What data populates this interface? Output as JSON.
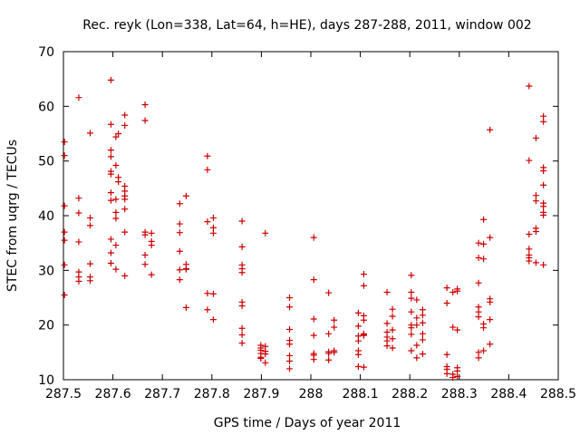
{
  "chart_data": {
    "type": "scatter",
    "title": "Rec. reyk (Lon=338, Lat=64, h=HE), days 287-288, 2011, window 002",
    "xlabel": "GPS time / Days of year 2011",
    "ylabel": "STEC from uqrg / TECUs",
    "xlim": [
      287.5,
      288.5
    ],
    "ylim": [
      10,
      70
    ],
    "xticks": [
      287.5,
      287.6,
      287.7,
      287.8,
      287.9,
      288.0,
      288.1,
      288.2,
      288.3,
      288.4,
      288.5
    ],
    "xtick_labels": [
      "287.5",
      "287.6",
      "287.7",
      "287.8",
      "287.9",
      "288",
      "288.1",
      "288.2",
      "288.3",
      "288.4",
      "288.5"
    ],
    "yticks": [
      10,
      20,
      30,
      40,
      50,
      60,
      70
    ],
    "ytick_labels": [
      "10",
      "20",
      "30",
      "40",
      "50",
      "60",
      "70"
    ],
    "grid": false,
    "legend": "none",
    "marker": "plus",
    "color": "#cc0000",
    "points": [
      [
        287.502,
        53.5
      ],
      [
        287.502,
        51.0
      ],
      [
        287.502,
        41.8
      ],
      [
        287.502,
        37.0
      ],
      [
        287.502,
        35.5
      ],
      [
        287.502,
        31.0
      ],
      [
        287.502,
        25.5
      ],
      [
        287.531,
        61.6
      ],
      [
        287.531,
        43.2
      ],
      [
        287.531,
        40.5
      ],
      [
        287.531,
        35.2
      ],
      [
        287.531,
        29.7
      ],
      [
        287.531,
        28.8
      ],
      [
        287.531,
        28.0
      ],
      [
        287.554,
        55.1
      ],
      [
        287.554,
        39.6
      ],
      [
        287.554,
        38.2
      ],
      [
        287.554,
        31.2
      ],
      [
        287.554,
        28.8
      ],
      [
        287.554,
        28.1
      ],
      [
        287.596,
        64.8
      ],
      [
        287.596,
        56.7
      ],
      [
        287.596,
        52.0
      ],
      [
        287.596,
        50.8
      ],
      [
        287.596,
        48.1
      ],
      [
        287.596,
        47.6
      ],
      [
        287.596,
        44.2
      ],
      [
        287.596,
        42.8
      ],
      [
        287.596,
        35.7
      ],
      [
        287.596,
        33.2
      ],
      [
        287.596,
        31.3
      ],
      [
        287.606,
        54.4
      ],
      [
        287.606,
        49.2
      ],
      [
        287.606,
        43.0
      ],
      [
        287.606,
        40.6
      ],
      [
        287.606,
        39.5
      ],
      [
        287.606,
        34.6
      ],
      [
        287.606,
        30.2
      ],
      [
        287.611,
        55.0
      ],
      [
        287.611,
        47.0
      ],
      [
        287.611,
        46.2
      ],
      [
        287.624,
        58.4
      ],
      [
        287.624,
        56.5
      ],
      [
        287.624,
        45.4
      ],
      [
        287.624,
        44.5
      ],
      [
        287.624,
        43.6
      ],
      [
        287.624,
        43.0
      ],
      [
        287.624,
        41.2
      ],
      [
        287.624,
        37.0
      ],
      [
        287.624,
        29.0
      ],
      [
        287.665,
        60.3
      ],
      [
        287.665,
        57.4
      ],
      [
        287.665,
        37.0
      ],
      [
        287.665,
        36.5
      ],
      [
        287.665,
        32.8
      ],
      [
        287.665,
        31.1
      ],
      [
        287.678,
        36.8
      ],
      [
        287.678,
        35.3
      ],
      [
        287.678,
        34.6
      ],
      [
        287.678,
        29.2
      ],
      [
        287.735,
        42.2
      ],
      [
        287.735,
        38.5
      ],
      [
        287.735,
        36.9
      ],
      [
        287.735,
        33.5
      ],
      [
        287.735,
        30.1
      ],
      [
        287.735,
        28.3
      ],
      [
        287.748,
        43.6
      ],
      [
        287.748,
        31.1
      ],
      [
        287.748,
        30.3
      ],
      [
        287.748,
        30.2
      ],
      [
        287.748,
        23.2
      ],
      [
        287.791,
        50.9
      ],
      [
        287.791,
        48.4
      ],
      [
        287.791,
        38.9
      ],
      [
        287.791,
        25.8
      ],
      [
        287.791,
        22.8
      ],
      [
        287.803,
        39.6
      ],
      [
        287.803,
        37.8
      ],
      [
        287.803,
        36.8
      ],
      [
        287.803,
        25.7
      ],
      [
        287.803,
        21.0
      ],
      [
        287.861,
        39.0
      ],
      [
        287.861,
        34.3
      ],
      [
        287.861,
        31.0
      ],
      [
        287.861,
        30.3
      ],
      [
        287.861,
        29.6
      ],
      [
        287.861,
        24.2
      ],
      [
        287.861,
        23.5
      ],
      [
        287.861,
        19.4
      ],
      [
        287.861,
        18.2
      ],
      [
        287.861,
        16.7
      ],
      [
        287.899,
        16.3
      ],
      [
        287.899,
        15.8
      ],
      [
        287.899,
        15.4
      ],
      [
        287.899,
        14.8
      ],
      [
        287.899,
        14.1
      ],
      [
        287.899,
        13.9
      ],
      [
        287.908,
        36.8
      ],
      [
        287.908,
        16.1
      ],
      [
        287.908,
        15.2
      ],
      [
        287.908,
        14.7
      ],
      [
        287.908,
        13.1
      ],
      [
        287.957,
        25.0
      ],
      [
        287.957,
        23.3
      ],
      [
        287.957,
        19.2
      ],
      [
        287.957,
        17.2
      ],
      [
        287.957,
        16.5
      ],
      [
        287.957,
        14.4
      ],
      [
        287.957,
        13.4
      ],
      [
        287.957,
        12.0
      ],
      [
        288.006,
        36.0
      ],
      [
        288.006,
        28.3
      ],
      [
        288.006,
        21.1
      ],
      [
        288.006,
        18.1
      ],
      [
        288.006,
        14.8
      ],
      [
        288.006,
        14.5
      ],
      [
        288.006,
        13.7
      ],
      [
        288.036,
        25.9
      ],
      [
        288.036,
        18.4
      ],
      [
        288.036,
        15.1
      ],
      [
        288.036,
        14.8
      ],
      [
        288.036,
        13.6
      ],
      [
        288.047,
        20.9
      ],
      [
        288.047,
        19.6
      ],
      [
        288.047,
        15.3
      ],
      [
        288.047,
        15.0
      ],
      [
        288.096,
        22.2
      ],
      [
        288.096,
        19.8
      ],
      [
        288.096,
        18.0
      ],
      [
        288.096,
        17.1
      ],
      [
        288.096,
        15.3
      ],
      [
        288.096,
        14.6
      ],
      [
        288.096,
        12.4
      ],
      [
        288.107,
        29.3
      ],
      [
        288.107,
        27.2
      ],
      [
        288.107,
        21.7
      ],
      [
        288.107,
        20.9
      ],
      [
        288.107,
        18.4
      ],
      [
        288.107,
        18.2
      ],
      [
        288.107,
        18.1
      ],
      [
        288.107,
        12.3
      ],
      [
        288.154,
        26.0
      ],
      [
        288.154,
        20.3
      ],
      [
        288.154,
        18.7
      ],
      [
        288.154,
        17.8
      ],
      [
        288.154,
        17.1
      ],
      [
        288.154,
        16.2
      ],
      [
        288.165,
        22.9
      ],
      [
        288.165,
        21.6
      ],
      [
        288.165,
        19.1
      ],
      [
        288.165,
        17.5
      ],
      [
        288.165,
        15.8
      ],
      [
        288.203,
        29.1
      ],
      [
        288.203,
        26.0
      ],
      [
        288.203,
        24.9
      ],
      [
        288.203,
        22.4
      ],
      [
        288.203,
        20.0
      ],
      [
        288.203,
        19.5
      ],
      [
        288.203,
        18.3
      ],
      [
        288.203,
        15.3
      ],
      [
        288.214,
        24.6
      ],
      [
        288.214,
        21.3
      ],
      [
        288.214,
        20.0
      ],
      [
        288.214,
        16.3
      ],
      [
        288.214,
        14.0
      ],
      [
        288.226,
        22.8
      ],
      [
        288.226,
        21.8
      ],
      [
        288.226,
        20.4
      ],
      [
        288.226,
        18.4
      ],
      [
        288.226,
        17.3
      ],
      [
        288.226,
        14.7
      ],
      [
        288.275,
        26.8
      ],
      [
        288.275,
        24.0
      ],
      [
        288.275,
        14.6
      ],
      [
        288.275,
        12.4
      ],
      [
        288.275,
        11.9
      ],
      [
        288.275,
        11.1
      ],
      [
        288.287,
        26.0
      ],
      [
        288.287,
        19.6
      ],
      [
        288.287,
        11.0
      ],
      [
        288.287,
        10.4
      ],
      [
        288.296,
        26.6
      ],
      [
        288.296,
        26.2
      ],
      [
        288.296,
        19.1
      ],
      [
        288.296,
        12.2
      ],
      [
        288.296,
        11.6
      ],
      [
        288.296,
        10.6
      ],
      [
        288.339,
        35.0
      ],
      [
        288.339,
        32.3
      ],
      [
        288.339,
        27.7
      ],
      [
        288.339,
        23.3
      ],
      [
        288.339,
        22.4
      ],
      [
        288.339,
        21.5
      ],
      [
        288.339,
        15.0
      ],
      [
        288.339,
        14.0
      ],
      [
        288.349,
        39.3
      ],
      [
        288.349,
        34.8
      ],
      [
        288.349,
        32.1
      ],
      [
        288.349,
        20.2
      ],
      [
        288.349,
        19.5
      ],
      [
        288.349,
        15.3
      ],
      [
        288.362,
        55.7
      ],
      [
        288.362,
        36.0
      ],
      [
        288.362,
        24.8
      ],
      [
        288.362,
        24.2
      ],
      [
        288.362,
        21.0
      ],
      [
        288.362,
        16.5
      ],
      [
        288.441,
        63.7
      ],
      [
        288.441,
        50.1
      ],
      [
        288.441,
        36.6
      ],
      [
        288.441,
        33.9
      ],
      [
        288.441,
        32.8
      ],
      [
        288.441,
        32.3
      ],
      [
        288.441,
        31.7
      ],
      [
        288.455,
        54.2
      ],
      [
        288.455,
        43.7
      ],
      [
        288.455,
        42.7
      ],
      [
        288.455,
        37.7
      ],
      [
        288.455,
        37.1
      ],
      [
        288.455,
        31.4
      ],
      [
        288.47,
        58.2
      ],
      [
        288.47,
        57.2
      ],
      [
        288.47,
        48.8
      ],
      [
        288.47,
        48.2
      ],
      [
        288.47,
        45.6
      ],
      [
        288.47,
        42.3
      ],
      [
        288.47,
        41.7
      ],
      [
        288.47,
        40.6
      ],
      [
        288.47,
        40.1
      ],
      [
        288.47,
        31.0
      ]
    ]
  }
}
